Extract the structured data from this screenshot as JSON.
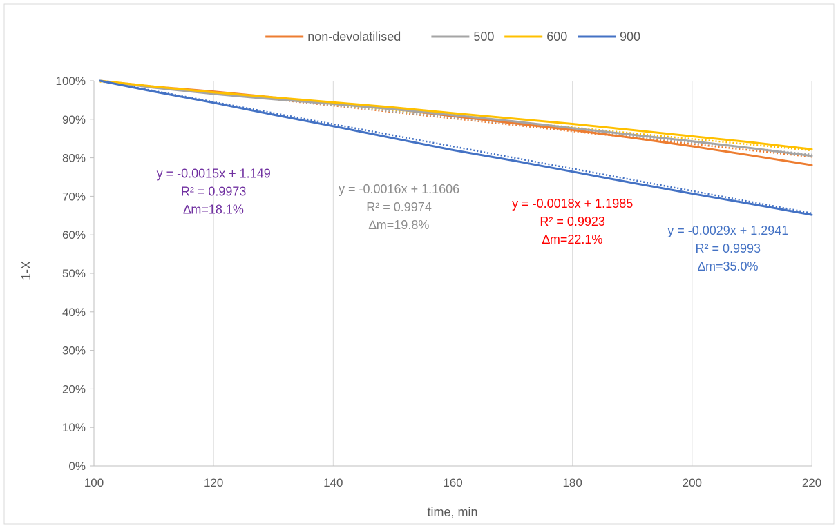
{
  "chart_data": {
    "type": "line",
    "title": "",
    "xlabel": "time, min",
    "ylabel": "1-X",
    "xlim": [
      100,
      220
    ],
    "ylim": [
      0,
      1
    ],
    "x_ticks": [
      100,
      120,
      140,
      160,
      180,
      200,
      220
    ],
    "x_tick_labels": [
      "100",
      "120",
      "140",
      "160",
      "180",
      "200",
      "220"
    ],
    "y_ticks": [
      0,
      0.1,
      0.2,
      0.3,
      0.4,
      0.5,
      0.6,
      0.7,
      0.8,
      0.9,
      1.0
    ],
    "y_tick_labels": [
      "0%",
      "10%",
      "20%",
      "30%",
      "40%",
      "50%",
      "60%",
      "70%",
      "80%",
      "90%",
      "100%"
    ],
    "grid": "vertical",
    "legend_position": "top",
    "series": [
      {
        "name": "non-devolatilised",
        "color": "#ED7D31",
        "x": [
          101,
          110,
          120,
          130,
          140,
          150,
          160,
          170,
          180,
          190,
          200,
          210,
          220
        ],
        "y": [
          1.0,
          0.985,
          0.972,
          0.957,
          0.942,
          0.927,
          0.908,
          0.89,
          0.872,
          0.852,
          0.83,
          0.806,
          0.781
        ],
        "trend": {
          "slope": -0.0018,
          "intercept": 1.1985
        }
      },
      {
        "name": "500",
        "color": "#A5A5A5",
        "x": [
          101,
          110,
          120,
          130,
          140,
          150,
          160,
          170,
          180,
          190,
          200,
          210,
          220
        ],
        "y": [
          1.0,
          0.982,
          0.966,
          0.952,
          0.94,
          0.926,
          0.911,
          0.895,
          0.877,
          0.86,
          0.843,
          0.825,
          0.805
        ],
        "trend": {
          "slope": -0.0016,
          "intercept": 1.1606
        }
      },
      {
        "name": "600",
        "color": "#FFC000",
        "x": [
          101,
          110,
          120,
          130,
          140,
          150,
          160,
          170,
          180,
          190,
          200,
          210,
          220
        ],
        "y": [
          1.0,
          0.985,
          0.97,
          0.957,
          0.944,
          0.931,
          0.916,
          0.902,
          0.888,
          0.872,
          0.856,
          0.84,
          0.822
        ],
        "trend": {
          "slope": -0.0015,
          "intercept": 1.149
        }
      },
      {
        "name": "900",
        "color": "#4472C4",
        "x": [
          101,
          110,
          120,
          130,
          140,
          150,
          160,
          170,
          180,
          190,
          200,
          210,
          220
        ],
        "y": [
          1.0,
          0.972,
          0.943,
          0.912,
          0.882,
          0.851,
          0.82,
          0.793,
          0.764,
          0.735,
          0.707,
          0.68,
          0.652
        ],
        "trend": {
          "slope": -0.0029,
          "intercept": 1.2941
        }
      }
    ],
    "annotations": [
      {
        "lines": [
          "y = -0.0015x + 1.149",
          "R² = 0.9973",
          "∆m=18.1%"
        ],
        "color": "#7030A0",
        "x": 120,
        "y": 0.748
      },
      {
        "lines": [
          "y = -0.0016x + 1.1606",
          "R² = 0.9974",
          "∆m=19.8%"
        ],
        "color": "#8C8C8C",
        "x": 151,
        "y": 0.708
      },
      {
        "lines": [
          "y = -0.0018x + 1.1985",
          "R² = 0.9923",
          "∆m=22.1%"
        ],
        "color": "#FF0000",
        "x": 180,
        "y": 0.67
      },
      {
        "lines": [
          "y = -0.0029x + 1.2941",
          "R² = 0.9993",
          "∆m=35.0%"
        ],
        "color": "#4472C4",
        "x": 206,
        "y": 0.6
      }
    ]
  }
}
